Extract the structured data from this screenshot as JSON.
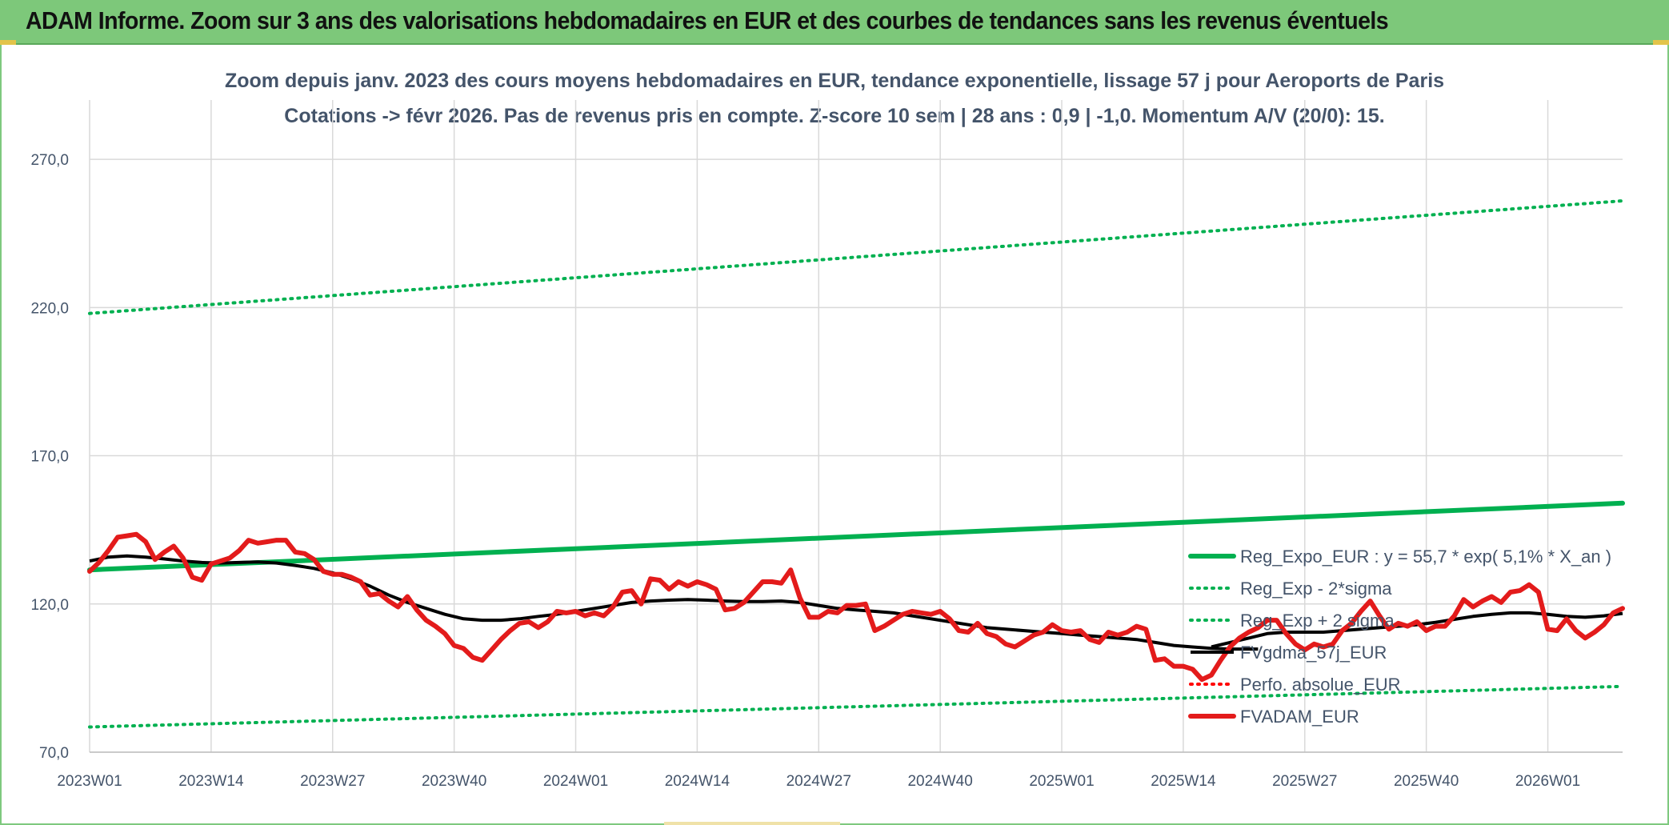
{
  "header": {
    "title": "ADAM Informe. Zoom sur 3 ans des valorisations hebdomadaires en EUR et des courbes de tendances sans les revenus éventuels"
  },
  "chart_data": {
    "type": "line",
    "title_line1": "Zoom depuis janv. 2023 des cours moyens hebdomadaires en EUR, tendance exponentielle, lissage 57 j pour Aeroports de Paris",
    "title_line2": "Cotations -> févr 2026. Pas de revenus pris en compte. Z-score 10 sem | 28 ans : 0,9 | -1,0. Momentum A/V (20/0): 15.",
    "ylim": [
      70,
      290
    ],
    "y_ticks": [
      {
        "value": 70,
        "label": "70,0"
      },
      {
        "value": 120,
        "label": "120,0"
      },
      {
        "value": 170,
        "label": "170,0"
      },
      {
        "value": 220,
        "label": "220,0"
      },
      {
        "value": 270,
        "label": "270,0"
      }
    ],
    "x_ticks": [
      {
        "week": 0,
        "label": "2023W01"
      },
      {
        "week": 13,
        "label": "2023W14"
      },
      {
        "week": 26,
        "label": "2023W27"
      },
      {
        "week": 39,
        "label": "2023W40"
      },
      {
        "week": 52,
        "label": "2024W01"
      },
      {
        "week": 65,
        "label": "2024W14"
      },
      {
        "week": 78,
        "label": "2024W27"
      },
      {
        "week": 91,
        "label": "2024W40"
      },
      {
        "week": 104,
        "label": "2025W01"
      },
      {
        "week": 117,
        "label": "2025W14"
      },
      {
        "week": 130,
        "label": "2025W27"
      },
      {
        "week": 143,
        "label": "2025W40"
      },
      {
        "week": 156,
        "label": "2026W01"
      }
    ],
    "x_max_week": 164,
    "grid": true,
    "legend_position": "right",
    "series": [
      {
        "name": "Reg_Expo_EUR : y = 55,7 * exp( 5,1% *  X_an )",
        "style": "solid-thick",
        "color": "#00b050",
        "points": [
          [
            0,
            131.5
          ],
          [
            164,
            154.0
          ]
        ]
      },
      {
        "name": "Reg_Exp - 2*sigma",
        "style": "dotted",
        "color": "#00b050",
        "points": [
          [
            0,
            78.5
          ],
          [
            164,
            92.2
          ]
        ]
      },
      {
        "name": "Reg_Exp + 2 sigma",
        "style": "dotted",
        "color": "#00b050",
        "points": [
          [
            0,
            218.0
          ],
          [
            164,
            256.0
          ]
        ]
      },
      {
        "name": "FVgdma_57j_EUR",
        "style": "solid",
        "color": "#000000",
        "points": [
          [
            0,
            134.5
          ],
          [
            2,
            135.8
          ],
          [
            4,
            136.2
          ],
          [
            6,
            135.8
          ],
          [
            8,
            135.2
          ],
          [
            10,
            134.5
          ],
          [
            12,
            134.0
          ],
          [
            14,
            133.8
          ],
          [
            16,
            134.0
          ],
          [
            18,
            134.2
          ],
          [
            20,
            133.8
          ],
          [
            22,
            133.0
          ],
          [
            24,
            132.0
          ],
          [
            26,
            130.5
          ],
          [
            28,
            128.5
          ],
          [
            30,
            126.0
          ],
          [
            32,
            123.0
          ],
          [
            34,
            120.5
          ],
          [
            36,
            118.5
          ],
          [
            38,
            116.5
          ],
          [
            40,
            115.0
          ],
          [
            42,
            114.5
          ],
          [
            44,
            114.5
          ],
          [
            46,
            115.0
          ],
          [
            48,
            115.8
          ],
          [
            50,
            116.5
          ],
          [
            52,
            117.5
          ],
          [
            54,
            118.5
          ],
          [
            56,
            119.5
          ],
          [
            58,
            120.5
          ],
          [
            60,
            121.0
          ],
          [
            62,
            121.3
          ],
          [
            64,
            121.5
          ],
          [
            66,
            121.3
          ],
          [
            68,
            121.0
          ],
          [
            70,
            120.8
          ],
          [
            72,
            120.8
          ],
          [
            74,
            121.0
          ],
          [
            76,
            120.5
          ],
          [
            78,
            119.5
          ],
          [
            80,
            118.5
          ],
          [
            82,
            118.0
          ],
          [
            84,
            117.5
          ],
          [
            86,
            117.0
          ],
          [
            88,
            116.0
          ],
          [
            90,
            115.0
          ],
          [
            92,
            114.0
          ],
          [
            94,
            113.0
          ],
          [
            96,
            112.0
          ],
          [
            98,
            111.5
          ],
          [
            100,
            111.0
          ],
          [
            102,
            110.5
          ],
          [
            104,
            110.0
          ],
          [
            106,
            109.5
          ],
          [
            108,
            109.0
          ],
          [
            110,
            108.5
          ],
          [
            112,
            108.0
          ],
          [
            114,
            107.0
          ],
          [
            116,
            106.0
          ],
          [
            118,
            105.5
          ],
          [
            120,
            105.0
          ],
          [
            122,
            104.8
          ],
          [
            124,
            104.8
          ],
          [
            125,
            104.8
          ]
        ],
        "points_b": [
          [
            120,
            105.5
          ],
          [
            122,
            107.0
          ],
          [
            124,
            108.5
          ],
          [
            126,
            110.0
          ],
          [
            128,
            110.5
          ],
          [
            130,
            110.5
          ],
          [
            132,
            110.5
          ],
          [
            134,
            111.0
          ],
          [
            136,
            111.5
          ],
          [
            138,
            112.0
          ],
          [
            140,
            112.5
          ],
          [
            142,
            113.0
          ],
          [
            144,
            113.8
          ],
          [
            146,
            114.8
          ],
          [
            148,
            115.8
          ],
          [
            150,
            116.5
          ],
          [
            152,
            117.0
          ],
          [
            154,
            117.0
          ],
          [
            156,
            116.5
          ],
          [
            158,
            115.8
          ],
          [
            160,
            115.5
          ],
          [
            162,
            116.0
          ],
          [
            164,
            116.8
          ]
        ]
      },
      {
        "name": "Perfo. absolue_EUR",
        "style": "dotted",
        "color": "#ff0000",
        "points": []
      },
      {
        "name": "FVADAM_EUR",
        "style": "solid-thick",
        "color": "#e31b1b",
        "points": [
          [
            0,
            131.0
          ],
          [
            1,
            134.0
          ],
          [
            2,
            138.0
          ],
          [
            3,
            142.5
          ],
          [
            4,
            143.0
          ],
          [
            5,
            143.5
          ],
          [
            6,
            141.0
          ],
          [
            7,
            135.0
          ],
          [
            8,
            137.5
          ],
          [
            9,
            139.5
          ],
          [
            10,
            135.5
          ],
          [
            11,
            129.0
          ],
          [
            12,
            128.0
          ],
          [
            13,
            133.5
          ],
          [
            14,
            134.5
          ],
          [
            15,
            135.5
          ],
          [
            16,
            138.0
          ],
          [
            17,
            141.5
          ],
          [
            18,
            140.5
          ],
          [
            19,
            141.0
          ],
          [
            20,
            141.5
          ],
          [
            21,
            141.5
          ],
          [
            22,
            137.5
          ],
          [
            23,
            137.0
          ],
          [
            24,
            135.0
          ],
          [
            25,
            131.0
          ],
          [
            26,
            130.0
          ],
          [
            27,
            130.0
          ],
          [
            28,
            129.0
          ],
          [
            29,
            127.5
          ],
          [
            30,
            123.0
          ],
          [
            31,
            123.5
          ],
          [
            32,
            121.0
          ],
          [
            33,
            119.0
          ],
          [
            34,
            122.5
          ],
          [
            35,
            118.0
          ],
          [
            36,
            114.5
          ],
          [
            37,
            112.5
          ],
          [
            38,
            110.0
          ],
          [
            39,
            106.0
          ],
          [
            40,
            105.0
          ],
          [
            41,
            102.0
          ],
          [
            42,
            101.0
          ],
          [
            43,
            104.5
          ],
          [
            44,
            108.0
          ],
          [
            45,
            111.0
          ],
          [
            46,
            113.5
          ],
          [
            47,
            114.0
          ],
          [
            48,
            112.0
          ],
          [
            49,
            114.0
          ],
          [
            50,
            117.5
          ],
          [
            51,
            117.0
          ],
          [
            52,
            117.5
          ],
          [
            53,
            116.0
          ],
          [
            54,
            117.0
          ],
          [
            55,
            116.0
          ],
          [
            56,
            119.0
          ],
          [
            57,
            124.0
          ],
          [
            58,
            124.5
          ],
          [
            59,
            120.0
          ],
          [
            60,
            128.5
          ],
          [
            61,
            128.0
          ],
          [
            62,
            125.0
          ],
          [
            63,
            127.5
          ],
          [
            64,
            126.0
          ],
          [
            65,
            127.5
          ],
          [
            66,
            126.5
          ],
          [
            67,
            125.0
          ],
          [
            68,
            118.0
          ],
          [
            69,
            118.5
          ],
          [
            70,
            120.5
          ],
          [
            71,
            124.0
          ],
          [
            72,
            127.5
          ],
          [
            73,
            127.5
          ],
          [
            74,
            127.0
          ],
          [
            75,
            131.5
          ],
          [
            76,
            122.0
          ],
          [
            77,
            115.5
          ],
          [
            78,
            115.5
          ],
          [
            79,
            117.5
          ],
          [
            80,
            117.0
          ],
          [
            81,
            119.5
          ],
          [
            82,
            119.5
          ],
          [
            83,
            120.0
          ],
          [
            84,
            111.0
          ],
          [
            85,
            112.5
          ],
          [
            86,
            114.5
          ],
          [
            87,
            116.5
          ],
          [
            88,
            117.5
          ],
          [
            89,
            117.0
          ],
          [
            90,
            116.5
          ],
          [
            91,
            117.5
          ],
          [
            92,
            115.0
          ],
          [
            93,
            111.0
          ],
          [
            94,
            110.5
          ],
          [
            95,
            113.5
          ],
          [
            96,
            110.0
          ],
          [
            97,
            109.0
          ],
          [
            98,
            106.5
          ],
          [
            99,
            105.5
          ],
          [
            100,
            107.5
          ],
          [
            101,
            109.5
          ],
          [
            102,
            110.5
          ],
          [
            103,
            113.0
          ],
          [
            104,
            111.0
          ],
          [
            105,
            110.5
          ],
          [
            106,
            111.0
          ],
          [
            107,
            108.0
          ],
          [
            108,
            107.0
          ],
          [
            109,
            110.5
          ],
          [
            110,
            109.5
          ],
          [
            111,
            110.5
          ],
          [
            112,
            112.5
          ],
          [
            113,
            111.5
          ],
          [
            114,
            101.0
          ],
          [
            115,
            101.5
          ],
          [
            116,
            99.0
          ],
          [
            117,
            99.0
          ],
          [
            118,
            98.0
          ],
          [
            119,
            94.5
          ],
          [
            120,
            96.0
          ],
          [
            121,
            101.0
          ],
          [
            122,
            105.5
          ],
          [
            123,
            108.5
          ],
          [
            124,
            110.5
          ],
          [
            125,
            112.0
          ],
          [
            126,
            114.5
          ],
          [
            127,
            114.5
          ],
          [
            128,
            110.0
          ],
          [
            129,
            106.5
          ],
          [
            130,
            104.5
          ],
          [
            131,
            106.5
          ],
          [
            132,
            105.5
          ],
          [
            133,
            106.5
          ],
          [
            134,
            111.0
          ],
          [
            135,
            113.5
          ],
          [
            136,
            117.5
          ],
          [
            137,
            121.0
          ],
          [
            138,
            116.0
          ],
          [
            139,
            111.5
          ],
          [
            140,
            113.5
          ],
          [
            141,
            112.5
          ],
          [
            142,
            114.0
          ],
          [
            143,
            111.0
          ],
          [
            144,
            112.5
          ],
          [
            145,
            112.5
          ],
          [
            146,
            116.0
          ],
          [
            147,
            121.5
          ],
          [
            148,
            119.0
          ],
          [
            149,
            121.0
          ],
          [
            150,
            122.5
          ],
          [
            151,
            120.5
          ],
          [
            152,
            124.0
          ],
          [
            153,
            124.5
          ],
          [
            154,
            126.5
          ],
          [
            155,
            124.0
          ],
          [
            156,
            111.5
          ],
          [
            157,
            111.0
          ],
          [
            158,
            115.0
          ],
          [
            159,
            111.0
          ],
          [
            160,
            108.5
          ],
          [
            161,
            110.5
          ],
          [
            162,
            113.0
          ],
          [
            163,
            117.0
          ],
          [
            164,
            118.5
          ]
        ]
      }
    ]
  }
}
